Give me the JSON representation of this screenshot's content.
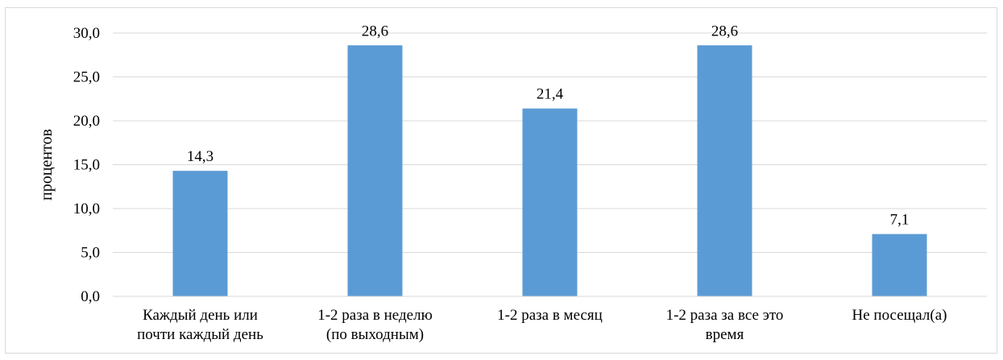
{
  "chart_data": {
    "type": "bar",
    "categories": [
      [
        "Каждый день или",
        "почти каждый день"
      ],
      [
        "1-2 раза в неделю",
        "(по выходным)"
      ],
      [
        "1-2 раза в месяц"
      ],
      [
        "1-2 раза за все это",
        "время"
      ],
      [
        "Не посещал(а)"
      ]
    ],
    "values": [
      14.3,
      28.6,
      21.4,
      28.6,
      7.1
    ],
    "value_labels": [
      "14,3",
      "28,6",
      "21,4",
      "28,6",
      "7,1"
    ],
    "ylabel": "процентов",
    "ylim": [
      0,
      30
    ],
    "yticks": [
      "0,0",
      "5,0",
      "10,0",
      "15,0",
      "20,0",
      "25,0",
      "30,0"
    ],
    "grid": true,
    "bar_color": "#5b9bd5",
    "grid_color": "#d9d9d9"
  }
}
